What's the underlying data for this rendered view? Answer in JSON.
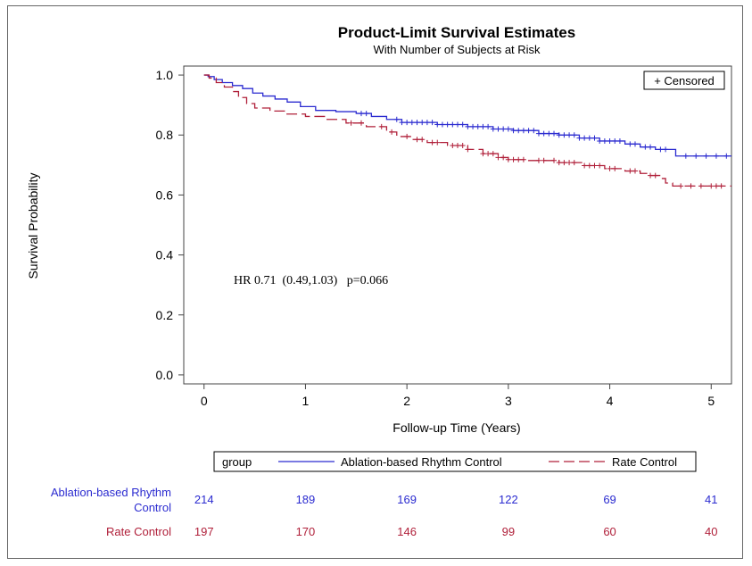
{
  "chart_data": {
    "type": "line",
    "title": "Product-Limit Survival Estimates",
    "subtitle": "With Number of Subjects at Risk",
    "xlabel": "Follow-up Time (Years)",
    "ylabel": "Survival Probability",
    "xlim": [
      -0.2,
      5.2
    ],
    "ylim": [
      -0.03,
      1.03
    ],
    "x_ticks": [
      "0",
      "1",
      "2",
      "3",
      "4",
      "5"
    ],
    "y_ticks": [
      "0.0",
      "0.2",
      "0.4",
      "0.6",
      "0.8",
      "1.0"
    ],
    "censored_legend": "+ Censored",
    "annotation": "HR 0.71  (0.49,1.03)   p=0.066",
    "legend": {
      "title": "group",
      "position": "bottom"
    },
    "series": [
      {
        "name": "Ablation-based Rhythm Control",
        "color": "#2b2bd0",
        "dash": "solid",
        "steps": [
          [
            0,
            1.0
          ],
          [
            0.04,
            0.995
          ],
          [
            0.1,
            0.985
          ],
          [
            0.18,
            0.975
          ],
          [
            0.28,
            0.965
          ],
          [
            0.38,
            0.955
          ],
          [
            0.48,
            0.94
          ],
          [
            0.58,
            0.93
          ],
          [
            0.7,
            0.92
          ],
          [
            0.82,
            0.91
          ],
          [
            0.95,
            0.895
          ],
          [
            1.1,
            0.882
          ],
          [
            1.3,
            0.878
          ],
          [
            1.5,
            0.872
          ],
          [
            1.65,
            0.862
          ],
          [
            1.8,
            0.852
          ],
          [
            1.95,
            0.842
          ],
          [
            2.3,
            0.835
          ],
          [
            2.6,
            0.828
          ],
          [
            2.85,
            0.82
          ],
          [
            3.05,
            0.815
          ],
          [
            3.3,
            0.805
          ],
          [
            3.5,
            0.8
          ],
          [
            3.7,
            0.79
          ],
          [
            3.9,
            0.78
          ],
          [
            4.15,
            0.77
          ],
          [
            4.3,
            0.76
          ],
          [
            4.45,
            0.752
          ],
          [
            4.65,
            0.73
          ],
          [
            5.2,
            0.73
          ]
        ],
        "censor_x": [
          1.55,
          1.6,
          1.9,
          1.95,
          2.0,
          2.05,
          2.1,
          2.15,
          2.2,
          2.25,
          2.3,
          2.35,
          2.4,
          2.45,
          2.5,
          2.55,
          2.6,
          2.65,
          2.7,
          2.75,
          2.8,
          2.85,
          2.9,
          2.95,
          3.0,
          3.05,
          3.1,
          3.15,
          3.2,
          3.25,
          3.3,
          3.35,
          3.4,
          3.45,
          3.5,
          3.55,
          3.6,
          3.65,
          3.7,
          3.75,
          3.8,
          3.85,
          3.9,
          3.95,
          4.0,
          4.05,
          4.1,
          4.2,
          4.25,
          4.35,
          4.4,
          4.5,
          4.55,
          4.75,
          4.85,
          4.95,
          5.05,
          5.15
        ]
      },
      {
        "name": "Rate Control",
        "color": "#b0203a",
        "dash": "dashed",
        "steps": [
          [
            0,
            1.0
          ],
          [
            0.05,
            0.99
          ],
          [
            0.12,
            0.975
          ],
          [
            0.2,
            0.96
          ],
          [
            0.28,
            0.945
          ],
          [
            0.34,
            0.925
          ],
          [
            0.42,
            0.905
          ],
          [
            0.5,
            0.89
          ],
          [
            0.65,
            0.88
          ],
          [
            0.8,
            0.87
          ],
          [
            1.0,
            0.862
          ],
          [
            1.2,
            0.852
          ],
          [
            1.4,
            0.84
          ],
          [
            1.6,
            0.828
          ],
          [
            1.8,
            0.81
          ],
          [
            1.9,
            0.795
          ],
          [
            2.05,
            0.785
          ],
          [
            2.2,
            0.775
          ],
          [
            2.4,
            0.765
          ],
          [
            2.6,
            0.752
          ],
          [
            2.75,
            0.738
          ],
          [
            2.9,
            0.725
          ],
          [
            3.0,
            0.718
          ],
          [
            3.2,
            0.715
          ],
          [
            3.5,
            0.708
          ],
          [
            3.75,
            0.698
          ],
          [
            3.95,
            0.688
          ],
          [
            4.15,
            0.68
          ],
          [
            4.3,
            0.672
          ],
          [
            4.4,
            0.665
          ],
          [
            4.5,
            0.655
          ],
          [
            4.55,
            0.64
          ],
          [
            4.62,
            0.63
          ],
          [
            5.2,
            0.63
          ]
        ],
        "censor_x": [
          1.45,
          1.55,
          1.75,
          1.85,
          2.0,
          2.1,
          2.15,
          2.25,
          2.3,
          2.45,
          2.5,
          2.55,
          2.6,
          2.75,
          2.8,
          2.85,
          2.9,
          2.95,
          3.0,
          3.05,
          3.1,
          3.15,
          3.3,
          3.35,
          3.45,
          3.5,
          3.55,
          3.6,
          3.65,
          3.75,
          3.8,
          3.85,
          3.9,
          4.0,
          4.05,
          4.2,
          4.25,
          4.4,
          4.45,
          4.7,
          4.8,
          4.9,
          5.0,
          5.05,
          5.1
        ]
      }
    ],
    "risk_table": {
      "rows": [
        {
          "label_line1": "Ablation-based Rhythm",
          "label_line2": "Control",
          "color": "#2b2bd0",
          "counts": [
            "214",
            "189",
            "169",
            "122",
            "69",
            "41"
          ]
        },
        {
          "label_line1": "Rate Control",
          "label_line2": "",
          "color": "#b0203a",
          "counts": [
            "197",
            "170",
            "146",
            "99",
            "60",
            "40"
          ]
        }
      ]
    }
  }
}
